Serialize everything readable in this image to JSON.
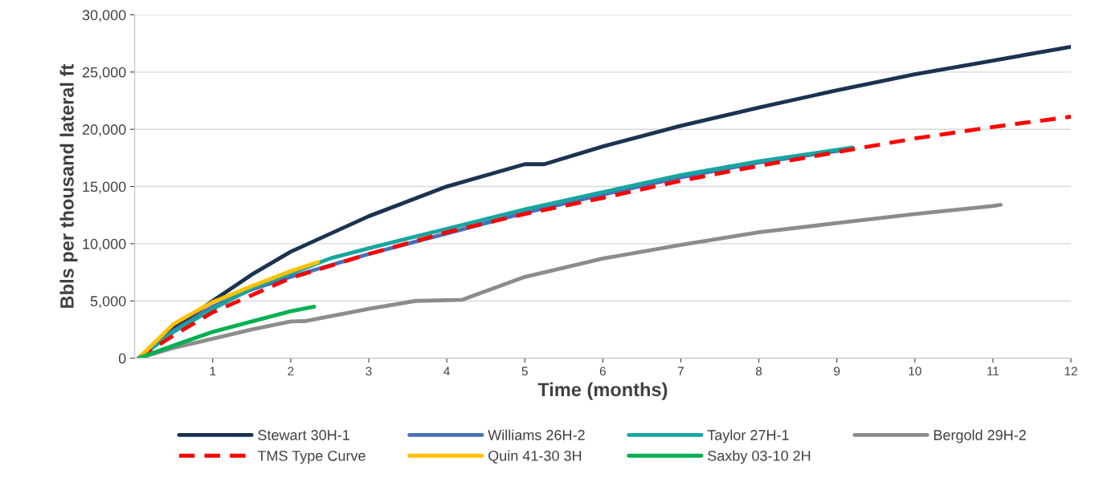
{
  "chart_data": {
    "type": "line",
    "xlabel": "Time (months)",
    "ylabel": "Bbls per thousand lateral ft",
    "xlim": [
      0,
      12
    ],
    "xticks": [
      1,
      2,
      3,
      4,
      5,
      6,
      7,
      8,
      9,
      10,
      11,
      12
    ],
    "ylim": [
      0,
      30000
    ],
    "yticks": [
      0,
      {
        "value": 5000,
        "label": "5,000"
      },
      {
        "value": 10000,
        "label": "10,000"
      },
      {
        "value": 15000,
        "label": "15,000"
      },
      {
        "value": 20000,
        "label": "20,000"
      },
      {
        "value": 25000,
        "label": "25,000"
      },
      {
        "value": 30000,
        "label": "30,000"
      }
    ],
    "grid": "y",
    "legend": "bottom",
    "marker": "none",
    "series": [
      {
        "name": "Stewart 30H-1",
        "color": "#1b3350",
        "line_style": "solid",
        "x": [
          0.05,
          0.5,
          1,
          1.5,
          2,
          3,
          4,
          5,
          5.25,
          6,
          7,
          8,
          9,
          10,
          11,
          12
        ],
        "values": [
          0,
          2600,
          5000,
          7300,
          9300,
          12400,
          15000,
          16950,
          16950,
          18500,
          20300,
          21900,
          23400,
          24800,
          26000,
          27200
        ]
      },
      {
        "name": "Williams 26H-2",
        "color": "#4a6fb5",
        "line_style": "solid",
        "x": [
          0.05,
          0.5,
          1,
          1.5,
          2,
          3,
          4,
          5,
          6,
          7,
          8,
          9,
          9.15
        ],
        "values": [
          0,
          2400,
          4500,
          6000,
          7100,
          9100,
          10900,
          12700,
          14300,
          15800,
          17100,
          18100,
          18300
        ]
      },
      {
        "name": "Taylor 27H-1",
        "color": "#17a5a0",
        "line_style": "solid",
        "x": [
          0.05,
          0.5,
          1,
          1.5,
          2,
          2.5,
          3,
          4,
          5,
          6,
          7,
          8,
          9,
          9.2
        ],
        "values": [
          0,
          2300,
          4300,
          6100,
          7400,
          8700,
          9600,
          11300,
          13000,
          14500,
          16000,
          17200,
          18200,
          18400
        ]
      },
      {
        "name": "Bergold 29H-2",
        "color": "#8c8c8c",
        "line_style": "solid",
        "x": [
          0.05,
          0.5,
          1,
          1.5,
          2,
          2.2,
          3,
          3.6,
          4.2,
          5,
          6,
          7,
          8,
          9,
          10,
          11,
          11.1
        ],
        "values": [
          0,
          900,
          1700,
          2500,
          3200,
          3250,
          4300,
          5000,
          5100,
          7100,
          8700,
          9900,
          11000,
          11800,
          12600,
          13300,
          13400
        ]
      },
      {
        "name": "TMS Type Curve",
        "color": "#ff0000",
        "line_style": "dashed",
        "x": [
          0.05,
          0.5,
          1,
          2,
          3,
          4,
          5,
          6,
          7,
          8,
          9,
          10,
          11,
          12
        ],
        "values": [
          0,
          2000,
          4000,
          7000,
          9100,
          11000,
          12600,
          14000,
          15500,
          16800,
          18000,
          19200,
          20200,
          21100
        ]
      },
      {
        "name": "Quin 41-30 3H",
        "color": "#ffc000",
        "line_style": "solid",
        "x": [
          0.05,
          0.5,
          1,
          1.5,
          2,
          2.35
        ],
        "values": [
          0,
          3000,
          4900,
          6300,
          7600,
          8400
        ]
      },
      {
        "name": "Saxby 03-10 2H",
        "color": "#00b050",
        "line_style": "solid",
        "x": [
          0.05,
          0.5,
          1,
          1.5,
          2,
          2.3
        ],
        "values": [
          0,
          1100,
          2300,
          3200,
          4100,
          4500
        ]
      }
    ]
  }
}
